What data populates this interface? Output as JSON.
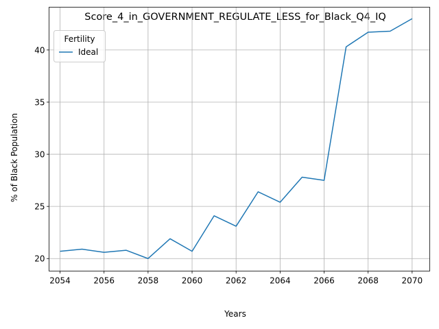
{
  "chart_data": {
    "type": "line",
    "title": "Score_4_in_GOVERNMENT_REGULATE_LESS_for_Black_Q4_IQ",
    "xlabel": "Years",
    "ylabel": "% of Black Population",
    "xlim": [
      2053.5,
      2070.8
    ],
    "ylim": [
      18.8,
      44.1
    ],
    "xticks": [
      2054,
      2056,
      2058,
      2060,
      2062,
      2064,
      2066,
      2068,
      2070
    ],
    "yticks": [
      20,
      25,
      30,
      35,
      40
    ],
    "grid": true,
    "legend": {
      "title": "Fertility",
      "placement": "top-left"
    },
    "x": [
      2054,
      2055,
      2056,
      2057,
      2058,
      2059,
      2060,
      2061,
      2062,
      2063,
      2064,
      2065,
      2066,
      2067,
      2068,
      2069,
      2070
    ],
    "series": [
      {
        "name": "Ideal",
        "color": "#1f77b4",
        "values": [
          20.7,
          20.9,
          20.6,
          20.8,
          20.0,
          21.9,
          20.7,
          24.1,
          23.1,
          26.4,
          25.4,
          27.8,
          27.5,
          40.3,
          41.7,
          41.8,
          43.0
        ]
      }
    ]
  }
}
